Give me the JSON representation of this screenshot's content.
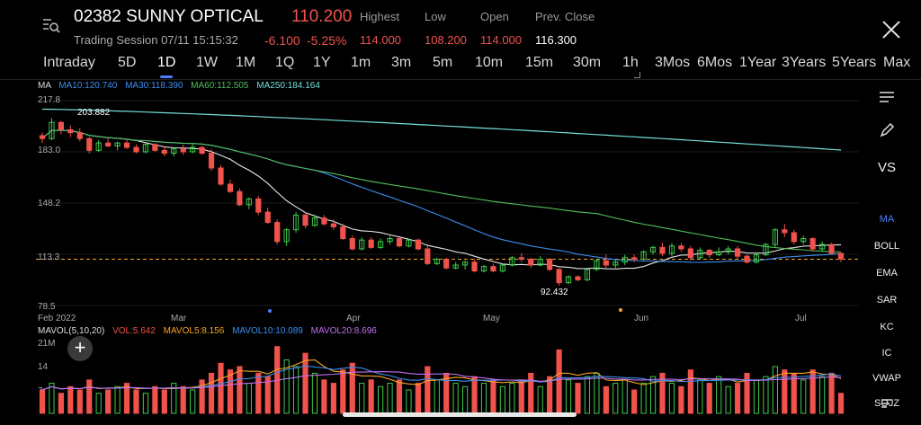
{
  "header": {
    "title": "02382 SUNNY OPTICAL",
    "price": "110.200",
    "change": "-6.100",
    "change_pct": "-5.25%",
    "session": "Trading Session 07/11 15:15:32",
    "labels": {
      "high": "Highest",
      "low": "Low",
      "open": "Open",
      "prev": "Prev. Close"
    },
    "values": {
      "high": "114.000",
      "low": "108.200",
      "open": "114.000",
      "prev": "116.300"
    }
  },
  "tabs": [
    "Intraday",
    "5D",
    "1D",
    "1W",
    "1M",
    "1Q",
    "1Y",
    "1m",
    "3m",
    "5m",
    "10m",
    "15m",
    "30m",
    "1h",
    "3Mos",
    "6Mos",
    "1Year",
    "3Years",
    "5Years",
    "Max"
  ],
  "active_tab": "1D",
  "ma_line": {
    "label": "MA",
    "ma10": "MA10:120.740",
    "ma30": "MA30:118.390",
    "ma60": "MA60:112.505",
    "ma250": "MA250:184.164"
  },
  "y_ticks": [
    "217.8",
    "183.0",
    "148.2",
    "113.3",
    "78.5"
  ],
  "x_ticks": [
    "Feb 2022",
    "Mar",
    "Apr",
    "May",
    "Jun",
    "Jul"
  ],
  "annotations": {
    "high": "203.882",
    "low": "92.432"
  },
  "vol_line": {
    "label": "MAVOL(5,10,20)",
    "vol": "VOL:5.642",
    "mavol5": "MAVOL5:8.156",
    "mavol10": "MAVOL10:10.089",
    "mavol20": "MAVOL20:8.696"
  },
  "vol_ticks": [
    "21M",
    "14",
    "7"
  ],
  "right_toolbar": [
    "VS",
    "MA",
    "BOLL",
    "EMA",
    "SAR",
    "KC",
    "IC",
    "VWAP",
    "SOJZ"
  ],
  "colors": {
    "up": "#3ecb4b",
    "down": "#f0524c",
    "ma10": "#e9e9e9",
    "ma30": "#3d8ef0",
    "ma60": "#4fbf5a",
    "ma250": "#76e0d8",
    "accent": "#4f7cff",
    "mavol5": "#f5a623",
    "mavol10": "#3d8ef0",
    "mavol20": "#c070f0"
  },
  "chart_data": {
    "type": "candlestick",
    "y_range": [
      78.5,
      217.8
    ],
    "candles": [
      [
        194,
        196,
        189,
        192
      ],
      [
        192,
        206,
        191,
        203
      ],
      [
        203,
        204,
        195,
        198
      ],
      [
        198,
        201,
        193,
        196
      ],
      [
        196,
        199,
        190,
        192
      ],
      [
        192,
        193,
        182,
        184
      ],
      [
        184,
        191,
        183,
        189
      ],
      [
        189,
        192,
        186,
        187
      ],
      [
        187,
        190,
        184,
        189
      ],
      [
        189,
        191,
        185,
        186
      ],
      [
        186,
        188,
        182,
        183
      ],
      [
        183,
        189,
        182,
        188
      ],
      [
        188,
        189,
        183,
        184
      ],
      [
        184,
        187,
        180,
        182
      ],
      [
        182,
        186,
        180,
        185
      ],
      [
        185,
        188,
        181,
        183
      ],
      [
        183,
        188,
        182,
        186
      ],
      [
        186,
        187,
        181,
        182
      ],
      [
        182,
        185,
        170,
        172
      ],
      [
        172,
        174,
        160,
        161
      ],
      [
        161,
        164,
        155,
        156
      ],
      [
        156,
        158,
        146,
        147
      ],
      [
        147,
        152,
        144,
        151
      ],
      [
        151,
        153,
        140,
        142
      ],
      [
        142,
        145,
        134,
        135
      ],
      [
        135,
        137,
        120,
        122
      ],
      [
        122,
        131,
        119,
        130
      ],
      [
        130,
        142,
        128,
        140
      ],
      [
        140,
        142,
        131,
        133
      ],
      [
        133,
        140,
        132,
        138
      ],
      [
        138,
        140,
        133,
        134
      ],
      [
        134,
        137,
        130,
        132
      ],
      [
        132,
        134,
        123,
        124
      ],
      [
        124,
        126,
        116,
        117
      ],
      [
        117,
        125,
        116,
        123
      ],
      [
        123,
        125,
        117,
        118
      ],
      [
        118,
        124,
        117,
        122
      ],
      [
        122,
        126,
        120,
        124
      ],
      [
        124,
        125,
        118,
        119
      ],
      [
        119,
        124,
        118,
        123
      ],
      [
        123,
        124,
        116,
        117
      ],
      [
        117,
        119,
        106,
        107
      ],
      [
        107,
        111,
        106,
        110
      ],
      [
        110,
        111,
        103,
        104
      ],
      [
        104,
        108,
        103,
        106
      ],
      [
        106,
        109,
        103,
        108
      ],
      [
        108,
        110,
        101,
        102
      ],
      [
        102,
        106,
        101,
        105
      ],
      [
        105,
        107,
        101,
        102
      ],
      [
        102,
        107,
        101,
        106
      ],
      [
        106,
        112,
        105,
        111
      ],
      [
        111,
        114,
        108,
        110
      ],
      [
        110,
        111,
        104,
        106
      ],
      [
        106,
        112,
        105,
        110
      ],
      [
        110,
        111,
        102,
        103
      ],
      [
        103,
        104,
        92,
        94
      ],
      [
        94,
        99,
        93,
        98
      ],
      [
        98,
        99,
        95,
        96
      ],
      [
        96,
        104,
        95,
        103
      ],
      [
        103,
        110,
        102,
        109
      ],
      [
        109,
        113,
        104,
        106
      ],
      [
        106,
        110,
        103,
        108
      ],
      [
        108,
        113,
        106,
        111
      ],
      [
        111,
        113,
        108,
        110
      ],
      [
        110,
        116,
        109,
        115
      ],
      [
        115,
        119,
        113,
        118
      ],
      [
        118,
        121,
        112,
        114
      ],
      [
        114,
        121,
        112,
        119
      ],
      [
        119,
        121,
        115,
        117
      ],
      [
        117,
        119,
        109,
        111
      ],
      [
        111,
        118,
        110,
        116
      ],
      [
        116,
        117,
        111,
        113
      ],
      [
        113,
        118,
        112,
        115
      ],
      [
        115,
        119,
        113,
        117
      ],
      [
        117,
        119,
        110,
        112
      ],
      [
        112,
        113,
        107,
        108
      ],
      [
        108,
        114,
        107,
        113
      ],
      [
        113,
        121,
        112,
        120
      ],
      [
        120,
        131,
        118,
        130
      ],
      [
        130,
        134,
        125,
        128
      ],
      [
        128,
        130,
        120,
        122
      ],
      [
        122,
        126,
        120,
        124
      ],
      [
        124,
        125,
        115,
        117
      ],
      [
        117,
        122,
        115,
        120
      ],
      [
        120,
        121,
        113,
        114
      ],
      [
        114,
        114,
        108,
        110
      ]
    ],
    "volumes": [
      7,
      9,
      6,
      8,
      7,
      10,
      6,
      7,
      8,
      9,
      7,
      6,
      8,
      7,
      9,
      8,
      7,
      10,
      12,
      15,
      13,
      14,
      9,
      12,
      11,
      20,
      16,
      14,
      18,
      12,
      10,
      9,
      13,
      15,
      9,
      10,
      8,
      9,
      10,
      7,
      9,
      14,
      10,
      12,
      9,
      8,
      11,
      9,
      10,
      8,
      9,
      10,
      12,
      8,
      11,
      19,
      10,
      9,
      11,
      12,
      8,
      9,
      10,
      7,
      9,
      11,
      12,
      9,
      8,
      13,
      10,
      9,
      11,
      8,
      9,
      12,
      10,
      11,
      14,
      13,
      12,
      10,
      13,
      11,
      12,
      6
    ]
  }
}
